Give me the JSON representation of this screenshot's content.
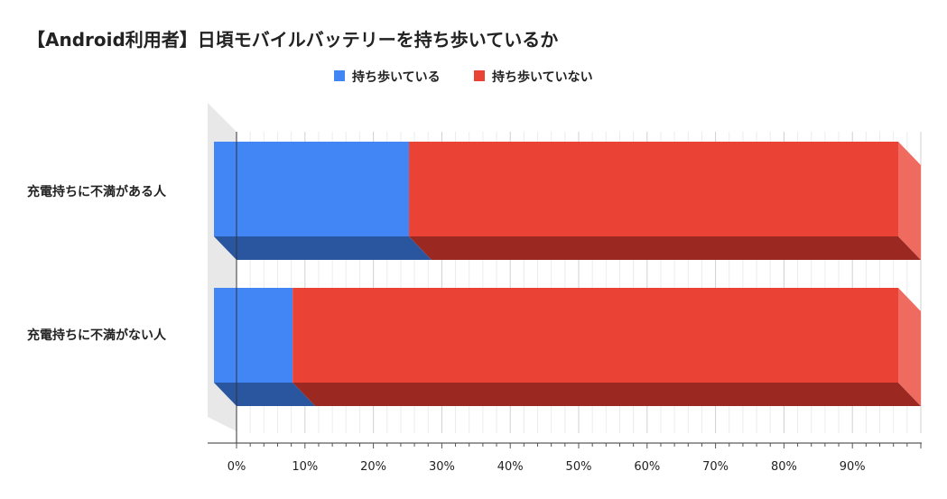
{
  "chart_data": {
    "type": "bar",
    "orientation": "horizontal",
    "stacked": "100%",
    "style": "3d",
    "title": "【Android利用者】日頃モバイルバッテリーを持ち歩いているか",
    "categories": [
      "充電持ちに不満がある人",
      "充電持ちに不満がない人"
    ],
    "series": [
      {
        "name": "持ち歩いている",
        "color": "#4285f4",
        "values": [
          28.5,
          11.5
        ]
      },
      {
        "name": "持ち歩いていない",
        "color": "#ea4335",
        "values": [
          71.5,
          88.5
        ]
      }
    ],
    "xaxis": {
      "ticks": [
        0,
        10,
        20,
        30,
        40,
        50,
        60,
        70,
        80,
        90
      ],
      "tick_labels": [
        "0%",
        "10%",
        "20%",
        "30%",
        "40%",
        "50%",
        "60%",
        "70%",
        "80%",
        "90%"
      ],
      "range": [
        0,
        100
      ]
    },
    "legend_position": "top",
    "grid": true
  }
}
